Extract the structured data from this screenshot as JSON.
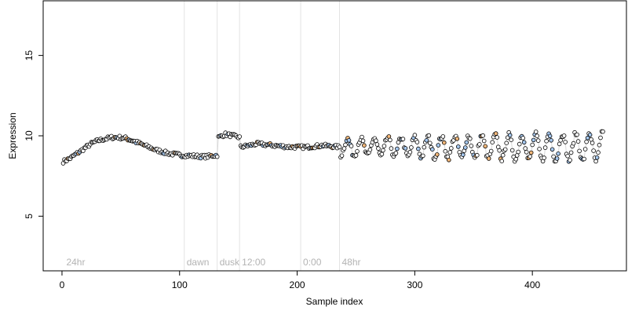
{
  "chart_data": {
    "type": "scatter",
    "xlabel": "Sample index",
    "ylabel": "Expression",
    "xlim": [
      -16,
      480
    ],
    "ylim": [
      1.6,
      18.4
    ],
    "x_ticks": [
      0,
      100,
      200,
      300,
      400
    ],
    "y_ticks": [
      5,
      10,
      15
    ],
    "grid": false,
    "n_points": 460,
    "connecting_line": true,
    "point_colors": {
      "default": "#ffffff",
      "highlight_blue": "#a6c8ef",
      "highlight_orange": "#f4b87a"
    },
    "line_colors": {
      "default": "#d9d9d9",
      "blue": "#6a9fe0",
      "orange": "#f0a040"
    },
    "vertical_markers": [
      {
        "x": 104,
        "label": "dawn"
      },
      {
        "x": 132,
        "label": "dusk"
      },
      {
        "x": 151,
        "label": "12:00"
      },
      {
        "x": 203,
        "label": "0:00"
      },
      {
        "x": 236,
        "label": "48hr"
      }
    ],
    "region_labels": [
      {
        "x": 3,
        "label": "24hr"
      }
    ],
    "segments": [
      {
        "x_start": 1,
        "x_end": 60,
        "y_values": [
          8.4,
          8.6,
          8.9,
          9.2,
          9.5,
          9.7,
          9.8,
          9.9,
          9.9,
          9.85,
          9.7
        ]
      },
      {
        "x_start": 60,
        "x_end": 132,
        "y_values": [
          9.7,
          9.4,
          9.1,
          8.9,
          8.8,
          8.75,
          8.7,
          8.8
        ]
      },
      {
        "x_start": 133,
        "x_end": 151,
        "y_values": [
          9.9,
          10.1,
          10.0,
          9.9
        ]
      },
      {
        "x_start": 152,
        "x_end": 236,
        "y_values": [
          9.3,
          9.5,
          9.4,
          9.3,
          9.3,
          9.4,
          9.3
        ]
      },
      {
        "x_start": 237,
        "x_end": 460,
        "oscillating": true,
        "center": 9.3,
        "amplitude_start": 0.5,
        "amplitude_end": 0.9
      }
    ]
  }
}
